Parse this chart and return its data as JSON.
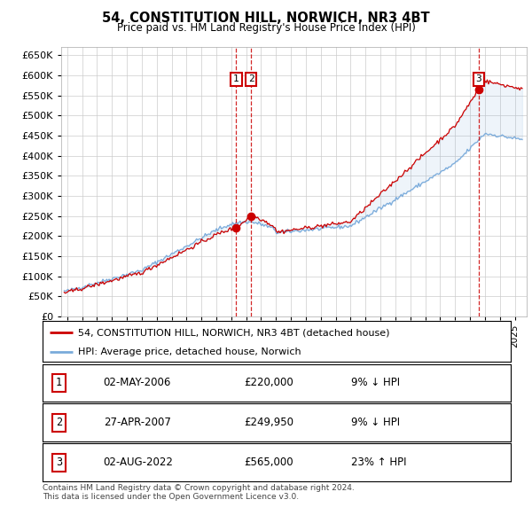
{
  "title": "54, CONSTITUTION HILL, NORWICH, NR3 4BT",
  "subtitle": "Price paid vs. HM Land Registry's House Price Index (HPI)",
  "ylim": [
    0,
    670000
  ],
  "yticks": [
    0,
    50000,
    100000,
    150000,
    200000,
    250000,
    300000,
    350000,
    400000,
    450000,
    500000,
    550000,
    600000,
    650000
  ],
  "sale_dates_num": [
    2006.33,
    2007.32,
    2022.58
  ],
  "sale_prices": [
    220000,
    249950,
    565000
  ],
  "sale_labels": [
    "1",
    "2",
    "3"
  ],
  "hpi_color": "#7aabdb",
  "price_color": "#cc0000",
  "dashed_color": "#cc0000",
  "legend_line1": "54, CONSTITUTION HILL, NORWICH, NR3 4BT (detached house)",
  "legend_line2": "HPI: Average price, detached house, Norwich",
  "table_rows": [
    [
      "1",
      "02-MAY-2006",
      "£220,000",
      "9% ↓ HPI"
    ],
    [
      "2",
      "27-APR-2007",
      "£249,950",
      "9% ↓ HPI"
    ],
    [
      "3",
      "02-AUG-2022",
      "£565,000",
      "23% ↑ HPI"
    ]
  ],
  "footnote": "Contains HM Land Registry data © Crown copyright and database right 2024.\nThis data is licensed under the Open Government Licence v3.0.",
  "background_color": "#ffffff",
  "grid_color": "#cccccc",
  "xlim_left": 1994.6,
  "xlim_right": 2025.8
}
